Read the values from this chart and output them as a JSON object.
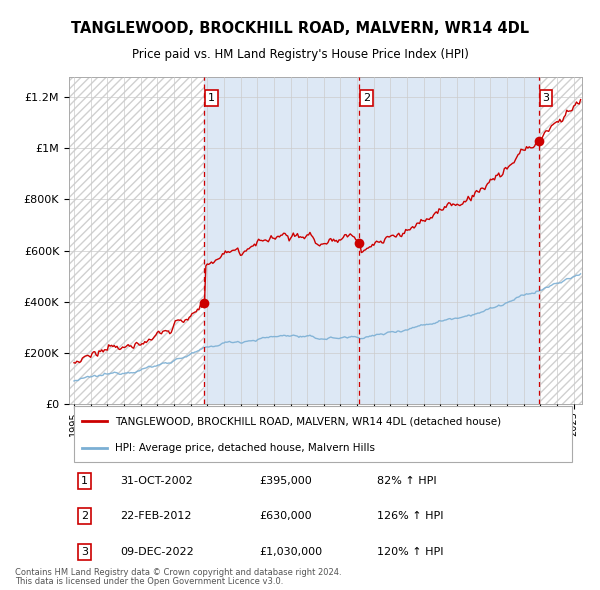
{
  "title": "TANGLEWOOD, BROCKHILL ROAD, MALVERN, WR14 4DL",
  "subtitle": "Price paid vs. HM Land Registry's House Price Index (HPI)",
  "title_fontsize": 10.5,
  "subtitle_fontsize": 8.5,
  "ylabel_ticks": [
    "£0",
    "£200K",
    "£400K",
    "£600K",
    "£800K",
    "£1M",
    "£1.2M"
  ],
  "ytick_values": [
    0,
    200000,
    400000,
    600000,
    800000,
    1000000,
    1200000
  ],
  "ylim": [
    0,
    1280000
  ],
  "xlim_start": 1994.7,
  "xlim_end": 2025.5,
  "sale_dates_decimal": [
    2002.83,
    2012.13,
    2022.92
  ],
  "sale_prices": [
    395000,
    630000,
    1030000
  ],
  "sale_labels": [
    "1",
    "2",
    "3"
  ],
  "sale_date_strings": [
    "31-OCT-2002",
    "22-FEB-2012",
    "09-DEC-2022"
  ],
  "sale_price_strings": [
    "£395,000",
    "£630,000",
    "£1,030,000"
  ],
  "sale_pct_strings": [
    "82% ↑ HPI",
    "126% ↑ HPI",
    "120% ↑ HPI"
  ],
  "red_line_color": "#cc0000",
  "blue_line_color": "#7bafd4",
  "shade_color": "#dde8f5",
  "dashed_line_color": "#cc0000",
  "legend_line1": "TANGLEWOOD, BROCKHILL ROAD, MALVERN, WR14 4DL (detached house)",
  "legend_line2": "HPI: Average price, detached house, Malvern Hills",
  "footer1": "Contains HM Land Registry data © Crown copyright and database right 2024.",
  "footer2": "This data is licensed under the Open Government Licence v3.0.",
  "background_color": "#ffffff",
  "plot_bg_color": "#ffffff",
  "hatch_color": "#c0c0c0"
}
